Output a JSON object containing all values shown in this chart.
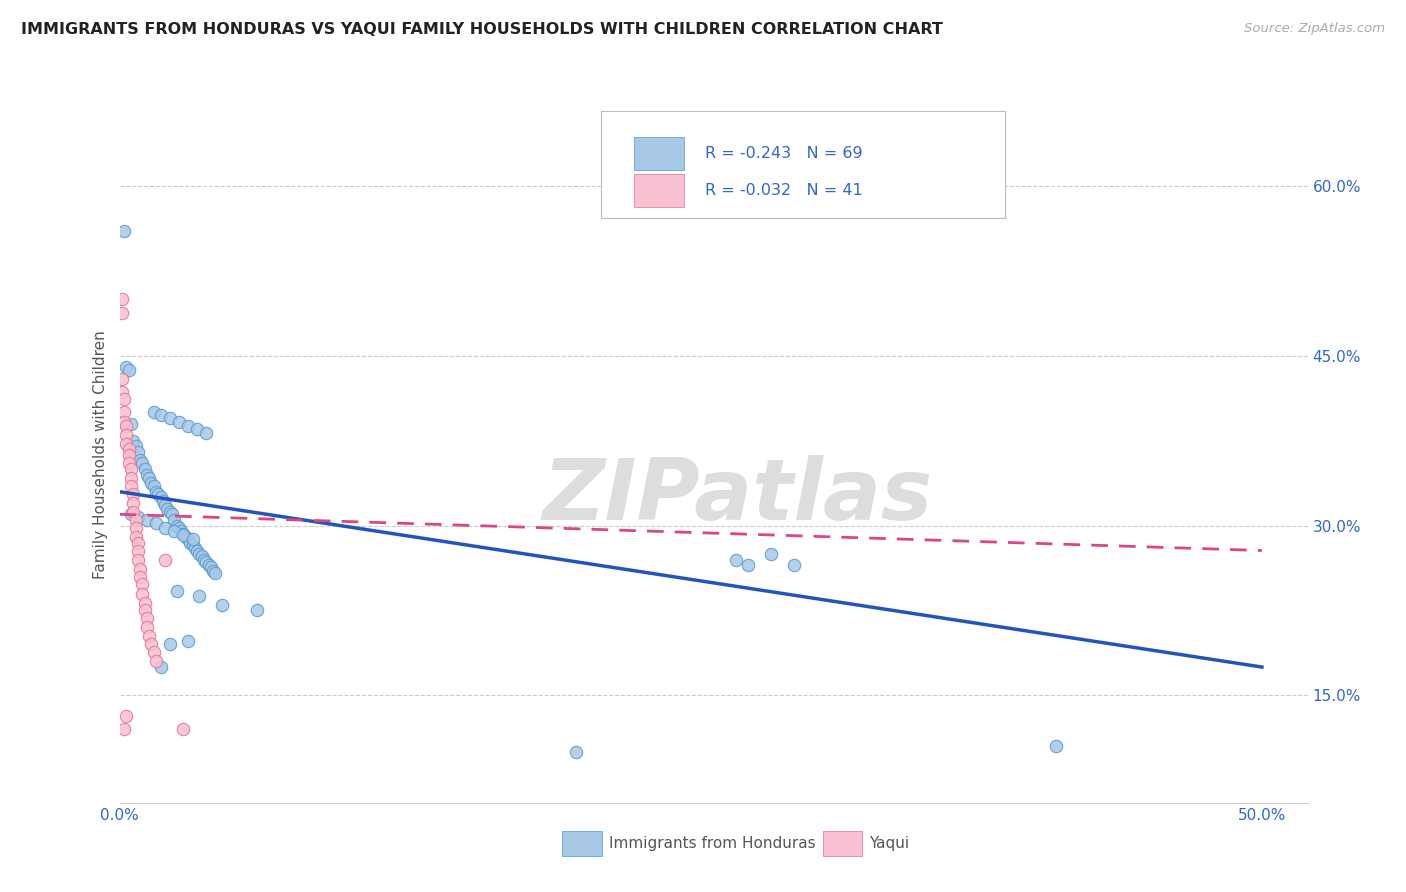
{
  "title": "IMMIGRANTS FROM HONDURAS VS YAQUI FAMILY HOUSEHOLDS WITH CHILDREN CORRELATION CHART",
  "source": "Source: ZipAtlas.com",
  "ylabel": "Family Households with Children",
  "xlim": [
    0.0,
    0.52
  ],
  "ylim": [
    0.055,
    0.67
  ],
  "x_ticks": [
    0.0,
    0.1,
    0.2,
    0.3,
    0.4,
    0.5
  ],
  "x_tick_labels": [
    "0.0%",
    "",
    "",
    "",
    "",
    "50.0%"
  ],
  "y_ticks_right": [
    0.15,
    0.3,
    0.45,
    0.6
  ],
  "y_tick_labels_right": [
    "15.0%",
    "30.0%",
    "45.0%",
    "60.0%"
  ],
  "blue_color": "#a8c8e8",
  "blue_edge": "#5599cc",
  "pink_color": "#f8c0d0",
  "pink_edge": "#e87090",
  "line_blue": "#2255bb",
  "line_pink": "#dd4488",
  "watermark": "ZIPatlas",
  "text_color": "#3366cc",
  "axis_label_color": "#555555",
  "grid_color": "#cccccc",
  "blue_scatter_x": [
    0.002,
    0.003,
    0.004,
    0.005,
    0.006,
    0.007,
    0.008,
    0.009,
    0.01,
    0.011,
    0.012,
    0.013,
    0.014,
    0.015,
    0.016,
    0.017,
    0.018,
    0.019,
    0.02,
    0.021,
    0.022,
    0.023,
    0.024,
    0.025,
    0.026,
    0.027,
    0.028,
    0.029,
    0.03,
    0.031,
    0.032,
    0.033,
    0.034,
    0.035,
    0.036,
    0.037,
    0.038,
    0.039,
    0.04,
    0.041,
    0.042,
    0.015,
    0.018,
    0.022,
    0.026,
    0.03,
    0.034,
    0.038,
    0.005,
    0.008,
    0.012,
    0.016,
    0.02,
    0.024,
    0.028,
    0.032,
    0.025,
    0.035,
    0.03,
    0.022,
    0.018,
    0.045,
    0.06,
    0.2,
    0.27,
    0.275,
    0.41,
    0.285,
    0.295
  ],
  "blue_scatter_y": [
    0.56,
    0.44,
    0.438,
    0.39,
    0.375,
    0.37,
    0.365,
    0.358,
    0.355,
    0.35,
    0.345,
    0.342,
    0.338,
    0.335,
    0.33,
    0.328,
    0.325,
    0.322,
    0.318,
    0.315,
    0.312,
    0.31,
    0.305,
    0.3,
    0.298,
    0.295,
    0.293,
    0.29,
    0.288,
    0.285,
    0.283,
    0.28,
    0.278,
    0.275,
    0.273,
    0.27,
    0.268,
    0.265,
    0.263,
    0.26,
    0.258,
    0.4,
    0.398,
    0.395,
    0.392,
    0.388,
    0.385,
    0.382,
    0.31,
    0.308,
    0.305,
    0.302,
    0.298,
    0.295,
    0.292,
    0.288,
    0.242,
    0.238,
    0.198,
    0.195,
    0.175,
    0.23,
    0.225,
    0.1,
    0.27,
    0.265,
    0.105,
    0.275,
    0.265
  ],
  "pink_scatter_x": [
    0.001,
    0.001,
    0.001,
    0.001,
    0.002,
    0.002,
    0.002,
    0.003,
    0.003,
    0.003,
    0.004,
    0.004,
    0.004,
    0.005,
    0.005,
    0.005,
    0.006,
    0.006,
    0.006,
    0.007,
    0.007,
    0.007,
    0.008,
    0.008,
    0.008,
    0.009,
    0.009,
    0.01,
    0.01,
    0.011,
    0.011,
    0.012,
    0.012,
    0.013,
    0.014,
    0.015,
    0.016,
    0.002,
    0.003,
    0.028,
    0.02
  ],
  "pink_scatter_y": [
    0.5,
    0.488,
    0.43,
    0.418,
    0.412,
    0.4,
    0.392,
    0.388,
    0.38,
    0.372,
    0.368,
    0.362,
    0.355,
    0.35,
    0.342,
    0.335,
    0.328,
    0.32,
    0.312,
    0.305,
    0.298,
    0.29,
    0.285,
    0.278,
    0.27,
    0.262,
    0.255,
    0.248,
    0.24,
    0.232,
    0.225,
    0.218,
    0.21,
    0.202,
    0.195,
    0.188,
    0.18,
    0.12,
    0.132,
    0.12,
    0.27
  ],
  "blue_trend_x": [
    0.0,
    0.5
  ],
  "blue_trend_y": [
    0.33,
    0.175
  ],
  "pink_trend_x": [
    0.0,
    0.5
  ],
  "pink_trend_y": [
    0.31,
    0.278
  ]
}
